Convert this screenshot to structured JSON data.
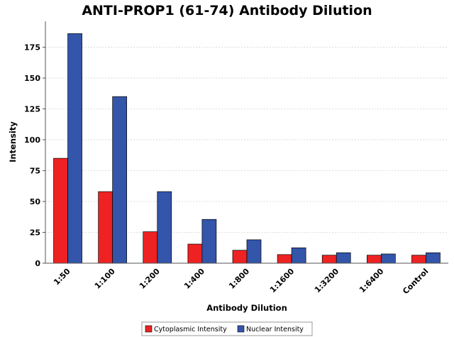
{
  "chart_data": {
    "type": "bar",
    "title": "ANTI-PROP1 (61-74) Antibody Dilution",
    "xlabel": "Antibody Dilution",
    "ylabel": "Intensity",
    "categories": [
      "1:50",
      "1:100",
      "1:200",
      "1:400",
      "1:800",
      "1:1600",
      "1:3200",
      "1:6400",
      "Control"
    ],
    "series": [
      {
        "name": "Cytoplasmic Intensity",
        "color": "#ee2222",
        "values": [
          85,
          58,
          25.5,
          15.5,
          10.5,
          7,
          6.5,
          6.5,
          6.5
        ]
      },
      {
        "name": "Nuclear Intensity",
        "color": "#3355aa",
        "values": [
          186,
          135,
          58,
          35.5,
          19,
          12.5,
          8.5,
          7.5,
          8.5
        ]
      }
    ],
    "ylim": [
      0,
      196
    ],
    "yticks": [
      0,
      25,
      50,
      75,
      100,
      125,
      150,
      175
    ],
    "grid": true,
    "legend": "bottom-center"
  }
}
